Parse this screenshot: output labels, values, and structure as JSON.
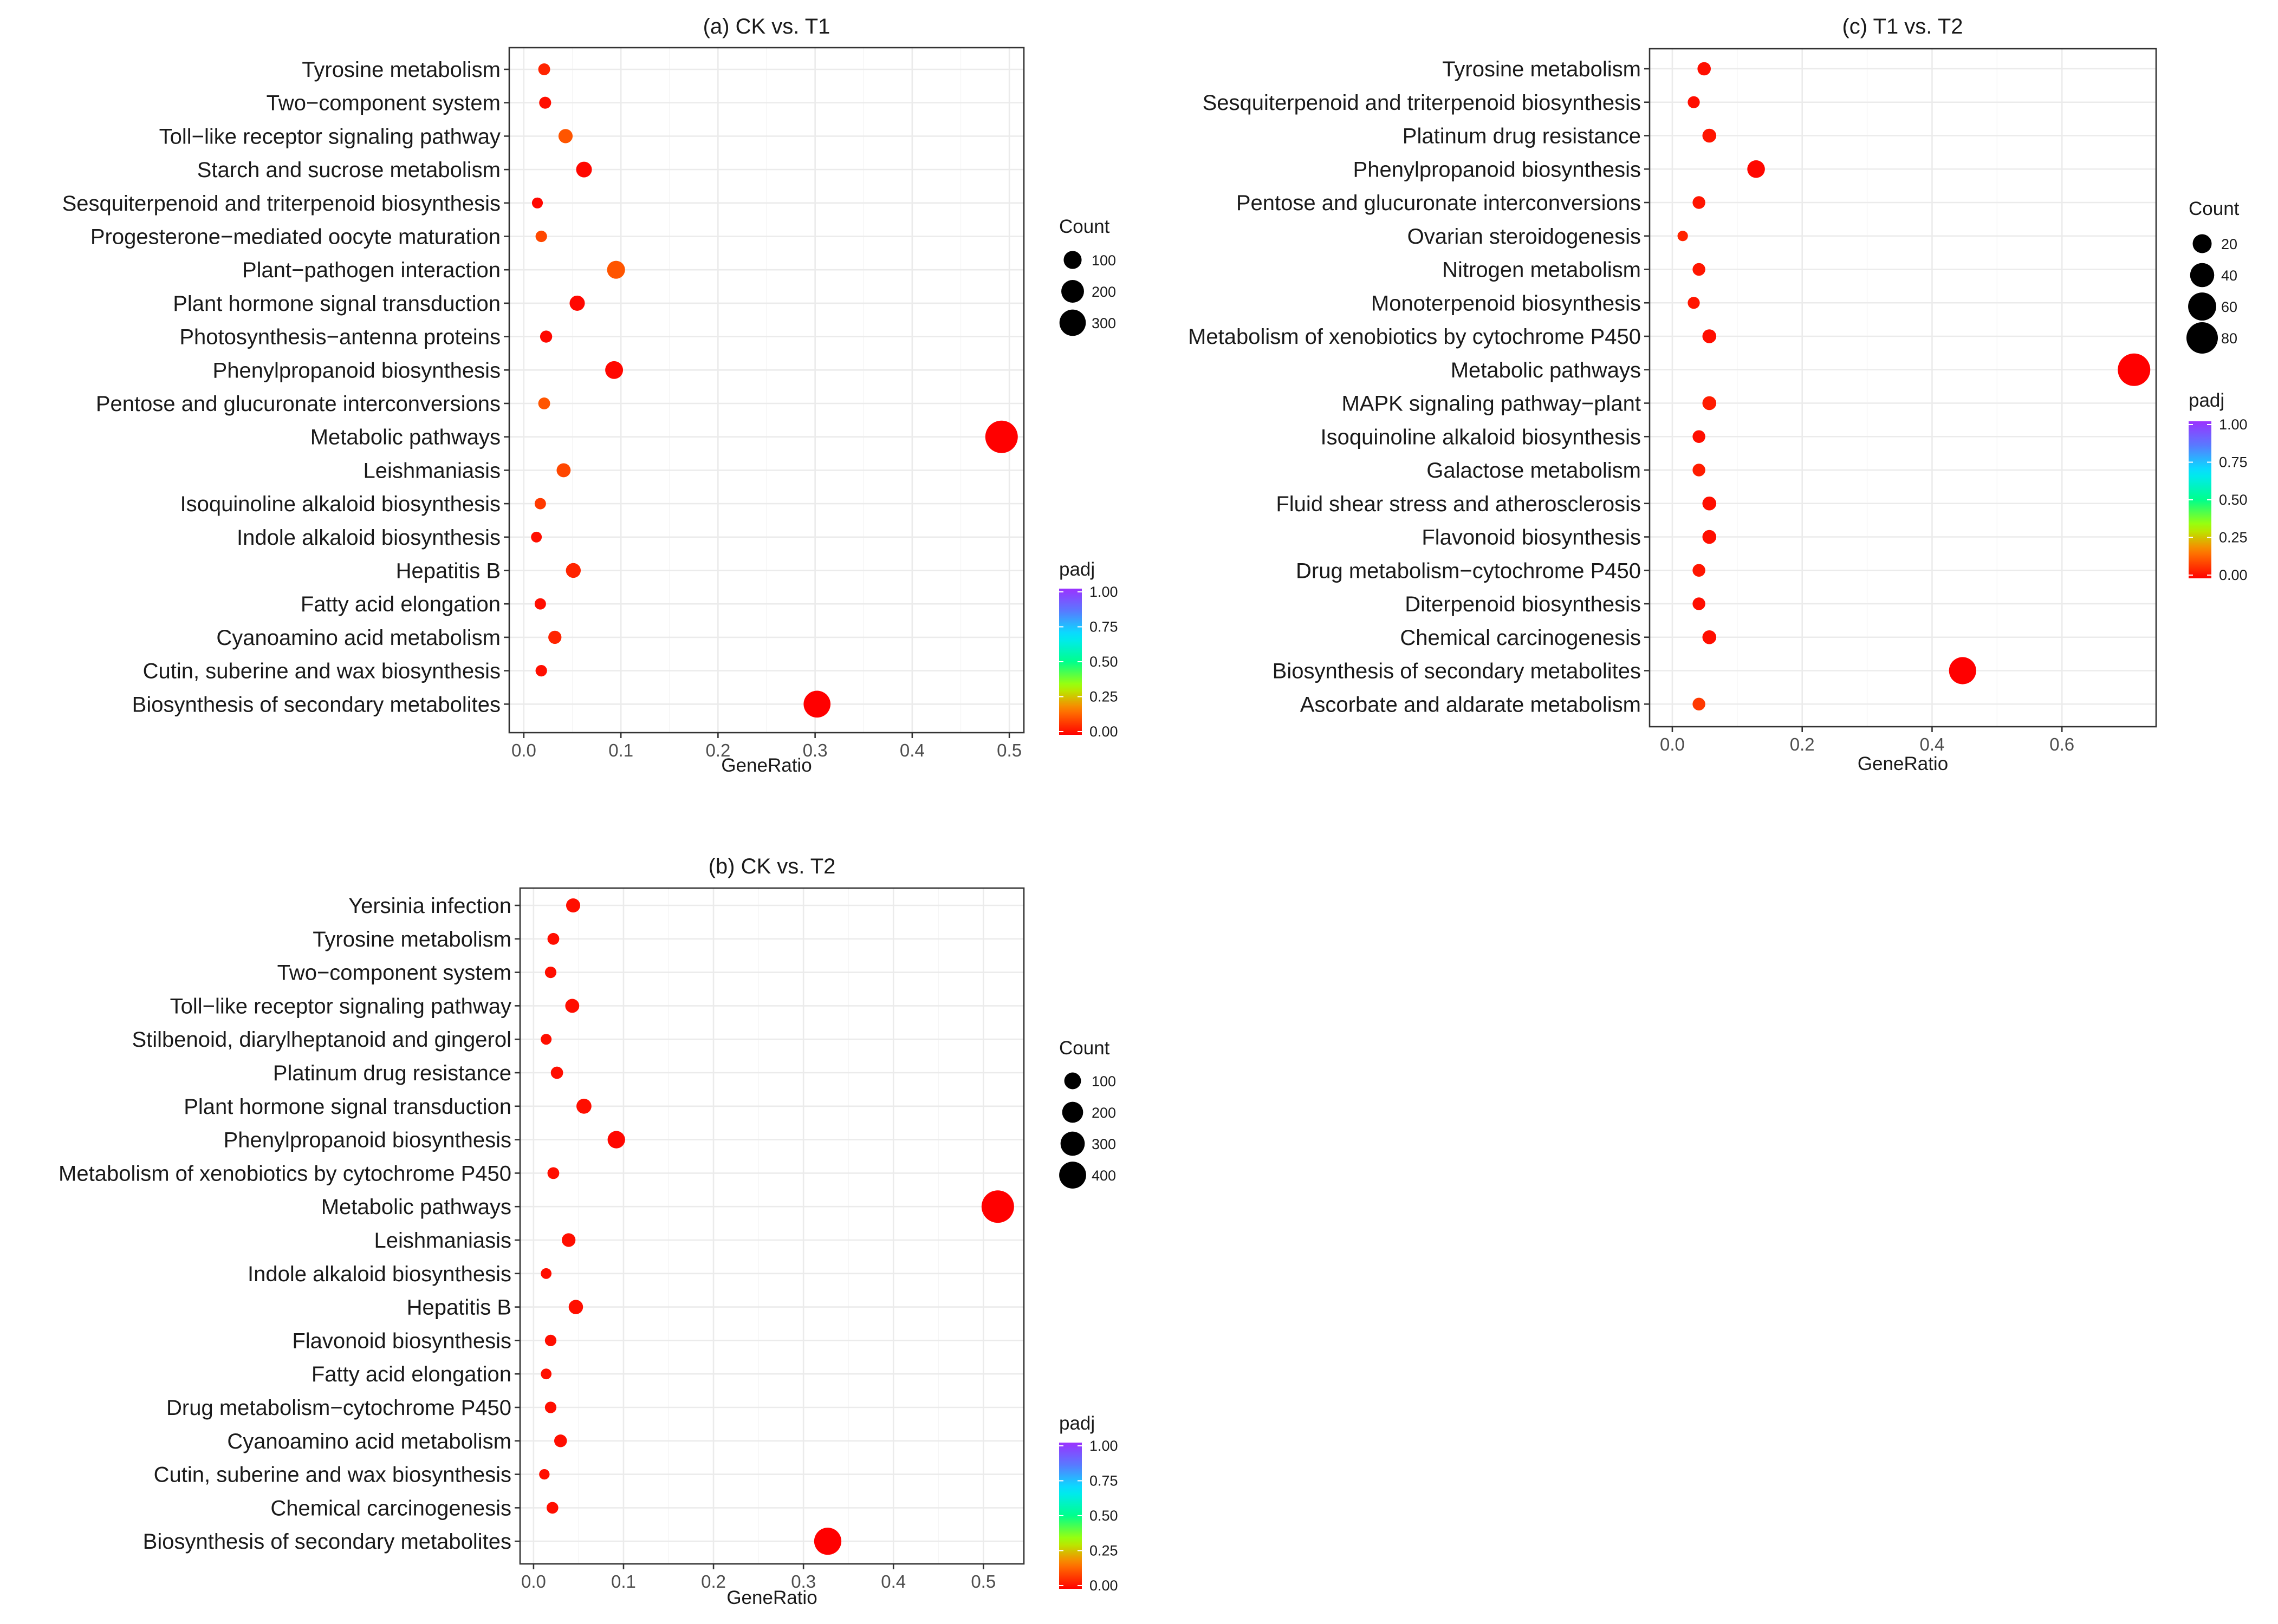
{
  "chart_data": [
    {
      "type": "scatter",
      "title": "(a) CK vs. T1",
      "xlabel": "GeneRatio",
      "ylabel": "",
      "xlim": [
        -0.015,
        0.515
      ],
      "x_ticks": [
        0.0,
        0.1,
        0.2,
        0.3,
        0.4,
        0.5
      ],
      "x_tick_labels": [
        "0.0",
        "0.1",
        "0.2",
        "0.3",
        "0.4",
        "0.5"
      ],
      "size_legend": {
        "title": "Count",
        "values": [
          100,
          200,
          300
        ],
        "labels": [
          "100",
          "200",
          "300"
        ]
      },
      "color_legend": {
        "title": "padj",
        "range": [
          0.0,
          1.0
        ],
        "labels": [
          "1.00",
          "0.75",
          "0.50",
          "0.25",
          "0.00"
        ]
      },
      "categories": [
        "Tyrosine metabolism",
        "Two−component system",
        "Toll−like receptor signaling pathway",
        "Starch and sucrose metabolism",
        "Sesquiterpenoid and triterpenoid biosynthesis",
        "Progesterone−mediated oocyte maturation",
        "Plant−pathogen interaction",
        "Plant hormone signal transduction",
        "Photosynthesis−antenna proteins",
        "Phenylpropanoid biosynthesis",
        "Pentose and glucuronate interconversions",
        "Metabolic pathways",
        "Leishmaniasis",
        "Isoquinoline alkaloid biosynthesis",
        "Indole alkaloid biosynthesis",
        "Hepatitis B",
        "Fatty acid elongation",
        "Cyanoamino acid metabolism",
        "Cutin, suberine and wax biosynthesis",
        "Biosynthesis of secondary metabolites"
      ],
      "x": [
        0.021,
        0.022,
        0.043,
        0.062,
        0.014,
        0.018,
        0.095,
        0.055,
        0.023,
        0.093,
        0.021,
        0.492,
        0.041,
        0.017,
        0.013,
        0.051,
        0.017,
        0.032,
        0.018,
        0.302
      ],
      "count": [
        22,
        23,
        45,
        65,
        15,
        19,
        100,
        58,
        24,
        98,
        22,
        515,
        43,
        18,
        14,
        53,
        18,
        34,
        19,
        317
      ],
      "padj": [
        0.05,
        0.02,
        0.12,
        0.01,
        0.01,
        0.1,
        0.12,
        0.01,
        0.01,
        0.01,
        0.12,
        0.0,
        0.1,
        0.08,
        0.02,
        0.05,
        0.02,
        0.05,
        0.02,
        0.0
      ]
    },
    {
      "type": "scatter",
      "title": "(b) CK vs. T2",
      "xlabel": "GeneRatio",
      "ylabel": "",
      "xlim": [
        -0.015,
        0.545
      ],
      "x_ticks": [
        0.0,
        0.1,
        0.2,
        0.3,
        0.4,
        0.5
      ],
      "x_tick_labels": [
        "0.0",
        "0.1",
        "0.2",
        "0.3",
        "0.4",
        "0.5"
      ],
      "size_legend": {
        "title": "Count",
        "values": [
          100,
          200,
          300,
          400
        ],
        "labels": [
          "100",
          "200",
          "300",
          "400"
        ]
      },
      "color_legend": {
        "title": "padj",
        "range": [
          0.0,
          1.0
        ],
        "labels": [
          "1.00",
          "0.75",
          "0.50",
          "0.25",
          "0.00"
        ]
      },
      "categories": [
        "Yersinia infection",
        "Tyrosine metabolism",
        "Two−component system",
        "Toll−like receptor signaling pathway",
        "Stilbenoid, diarylheptanoid and gingerol",
        "Platinum drug resistance",
        "Plant hormone signal transduction",
        "Phenylpropanoid biosynthesis",
        "Metabolism of xenobiotics by cytochrome P450",
        "Metabolic pathways",
        "Leishmaniasis",
        "Indole alkaloid biosynthesis",
        "Hepatitis B",
        "Flavonoid biosynthesis",
        "Fatty acid elongation",
        "Drug metabolism−cytochrome P450",
        "Cyanoamino acid metabolism",
        "Cutin, suberine and wax biosynthesis",
        "Chemical carcinogenesis",
        "Biosynthesis of secondary metabolites"
      ],
      "x": [
        0.044,
        0.022,
        0.019,
        0.043,
        0.014,
        0.026,
        0.056,
        0.092,
        0.022,
        0.516,
        0.039,
        0.014,
        0.047,
        0.019,
        0.014,
        0.019,
        0.03,
        0.012,
        0.021,
        0.327
      ],
      "count": [
        55,
        27,
        24,
        54,
        18,
        32,
        70,
        115,
        27,
        645,
        49,
        17,
        59,
        24,
        17,
        24,
        37,
        15,
        26,
        409
      ],
      "padj": [
        0.02,
        0.02,
        0.02,
        0.02,
        0.02,
        0.02,
        0.02,
        0.01,
        0.02,
        0.0,
        0.02,
        0.02,
        0.02,
        0.02,
        0.02,
        0.02,
        0.02,
        0.02,
        0.02,
        0.0
      ]
    },
    {
      "type": "scatter",
      "title": "(c) T1 vs. T2",
      "xlabel": "GeneRatio",
      "ylabel": "",
      "xlim": [
        -0.035,
        0.745
      ],
      "x_ticks": [
        0.0,
        0.2,
        0.4,
        0.6
      ],
      "x_tick_labels": [
        "0.0",
        "0.2",
        "0.4",
        "0.6"
      ],
      "size_legend": {
        "title": "Count",
        "values": [
          20,
          40,
          60,
          80
        ],
        "labels": [
          "20",
          "40",
          "60",
          "80"
        ]
      },
      "color_legend": {
        "title": "padj",
        "range": [
          0.0,
          1.0
        ],
        "labels": [
          "1.00",
          "0.75",
          "0.50",
          "0.25",
          "0.00"
        ]
      },
      "categories": [
        "Tyrosine metabolism",
        "Sesquiterpenoid and triterpenoid biosynthesis",
        "Platinum drug resistance",
        "Phenylpropanoid biosynthesis",
        "Pentose and glucuronate interconversions",
        "Ovarian steroidogenesis",
        "Nitrogen metabolism",
        "Monoterpenoid biosynthesis",
        "Metabolism of xenobiotics by cytochrome P450",
        "Metabolic pathways",
        "MAPK signaling pathway−plant",
        "Isoquinoline alkaloid biosynthesis",
        "Galactose metabolism",
        "Fluid shear stress and atherosclerosis",
        "Flavonoid biosynthesis",
        "Drug metabolism−cytochrome P450",
        "Diterpenoid biosynthesis",
        "Chemical carcinogenesis",
        "Biosynthesis of secondary metabolites",
        "Ascorbate and aldarate metabolism"
      ],
      "x": [
        0.049,
        0.033,
        0.057,
        0.129,
        0.041,
        0.016,
        0.041,
        0.033,
        0.057,
        0.711,
        0.057,
        0.041,
        0.041,
        0.057,
        0.057,
        0.041,
        0.041,
        0.057,
        0.447,
        0.041
      ],
      "count": [
        6,
        4,
        7,
        16,
        5,
        2,
        5,
        4,
        7,
        87,
        7,
        5,
        5,
        7,
        7,
        5,
        5,
        7,
        55,
        5
      ],
      "padj": [
        0.02,
        0.02,
        0.03,
        0.01,
        0.03,
        0.05,
        0.03,
        0.03,
        0.02,
        0.0,
        0.04,
        0.02,
        0.04,
        0.02,
        0.02,
        0.03,
        0.02,
        0.02,
        0.0,
        0.08
      ]
    }
  ]
}
